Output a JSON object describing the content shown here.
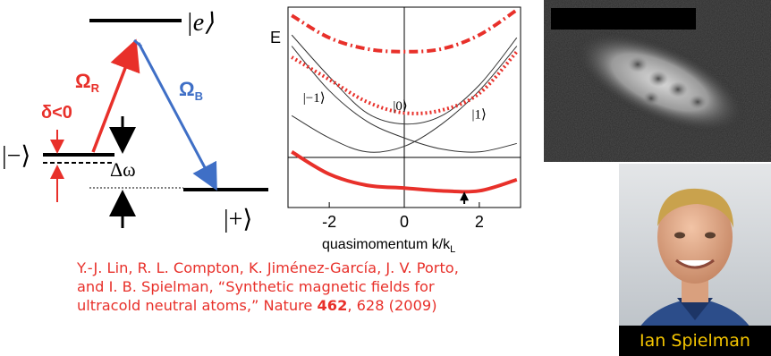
{
  "levels": {
    "excited": "|e⟩",
    "minus": "|−⟩",
    "plus": "|+⟩",
    "omega_r": "Ω",
    "omega_r_sub": "R",
    "omega_b": "Ω",
    "omega_b_sub": "B",
    "delta": "δ<0",
    "delta_omega": "Δω"
  },
  "chart_data": {
    "type": "line",
    "xlabel": "quasimomentum k/k",
    "xlabel_sub": "L",
    "ylabel": "E",
    "xlim": [
      -3.1,
      3.1
    ],
    "x_ticks": [
      "-2",
      "0",
      "2"
    ],
    "x_tick_values": [
      -2,
      0,
      2
    ],
    "state_labels": [
      "|−1⟩",
      "|0⟩",
      "|1⟩"
    ],
    "state_label_positions": [
      [
        -2.7,
        0.8
      ],
      [
        -0.3,
        0.5
      ],
      [
        1.8,
        0.2
      ]
    ],
    "series": [
      {
        "values_x": [
          -3,
          -2,
          -1,
          0,
          1,
          2,
          3
        ],
        "values_y": [
          0.3,
          -0.5,
          -1.0,
          -0.8,
          0.0,
          1.2,
          2.8
        ],
        "style": "thin"
      },
      {
        "values_x": [
          -3,
          -2,
          -1,
          0,
          1,
          2,
          3
        ],
        "values_y": [
          2.8,
          1.2,
          0.1,
          -0.5,
          -0.9,
          -1.0,
          -0.7
        ],
        "style": "thin"
      },
      {
        "values_x": [
          -3,
          -2,
          -1,
          0,
          1,
          2,
          3
        ],
        "values_y": [
          3.2,
          1.7,
          0.4,
          0.0,
          0.3,
          1.4,
          3.1
        ],
        "style": "thin"
      },
      {
        "values_x": [
          -3,
          -2,
          -1,
          0,
          1,
          2,
          3
        ],
        "values_y": [
          -1.0,
          -1.8,
          -2.2,
          -2.3,
          -2.4,
          -2.4,
          -2.0
        ],
        "style": "thick-red"
      },
      {
        "values_x": [
          -3,
          -2,
          -1,
          0,
          1,
          2,
          3
        ],
        "values_y": [
          2.4,
          1.6,
          0.8,
          0.4,
          0.5,
          1.1,
          2.6
        ],
        "style": "dotted-red"
      },
      {
        "values_x": [
          -3,
          -2,
          -1,
          0,
          1,
          2,
          3
        ],
        "values_y": [
          3.9,
          3.1,
          2.7,
          2.6,
          2.7,
          3.2,
          4.1
        ],
        "style": "dashdot-red"
      }
    ],
    "arrow_x": 1.6
  },
  "citation": {
    "line1": "Y.-J. Lin, R. L. Compton, K. Jiménez-García, J. V. Porto,",
    "line2": "and I. B. Spielman, “Synthetic magnetic fields for",
    "line3_pre": "ultracold neutral atoms,” Nature ",
    "volume": "462",
    "line3_post": ", 628 (2009)"
  },
  "caption": "Ian Spielman",
  "colors": {
    "red": "#e8302a",
    "blue": "#3f6fc6",
    "caption_bg": "#000000",
    "caption_text": "#f3c400"
  }
}
